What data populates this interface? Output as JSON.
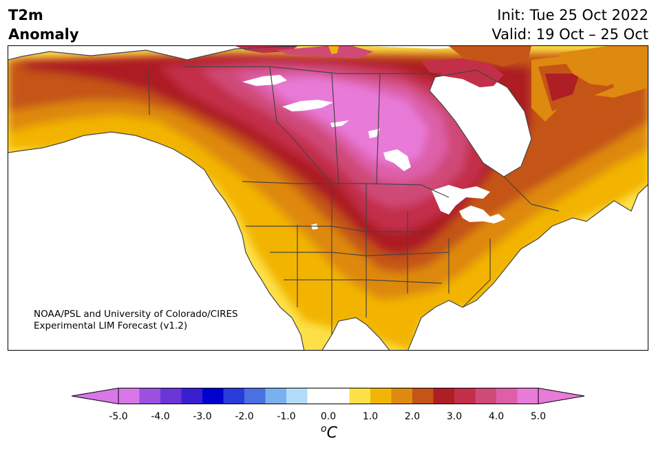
{
  "title": {
    "left_line1": "T2m",
    "left_line2": "Anomaly",
    "right_line1": "Init: Tue 25 Oct 2022",
    "right_line2": "Valid: 19 Oct – 25 Oct"
  },
  "credit": {
    "line1": "NOAA/PSL and University of Colorado/CIRES",
    "line2": "Experimental LIM Forecast (v1.2)"
  },
  "colorbar": {
    "unit_base": "C",
    "unit_super": "o",
    "ticks": [
      "-5.0",
      "-4.0",
      "-3.0",
      "-2.0",
      "-1.0",
      "0.0",
      "1.0",
      "2.0",
      "3.0",
      "4.0",
      "5.0"
    ],
    "colors": [
      "#d877e8",
      "#9c50e0",
      "#6a36d8",
      "#3a1fd0",
      "#0000cf",
      "#2a3bdb",
      "#4a70e2",
      "#79b0f0",
      "#b3dcf9",
      "#ffffff",
      "#ffffff",
      "#fde047",
      "#f2b406",
      "#de8910",
      "#c55417",
      "#ad1f24",
      "#c32f48",
      "#cf4a77",
      "#dd5fa8",
      "#e87ad8"
    ],
    "under_color": "#d877e8",
    "over_color": "#e87ad8"
  }
}
